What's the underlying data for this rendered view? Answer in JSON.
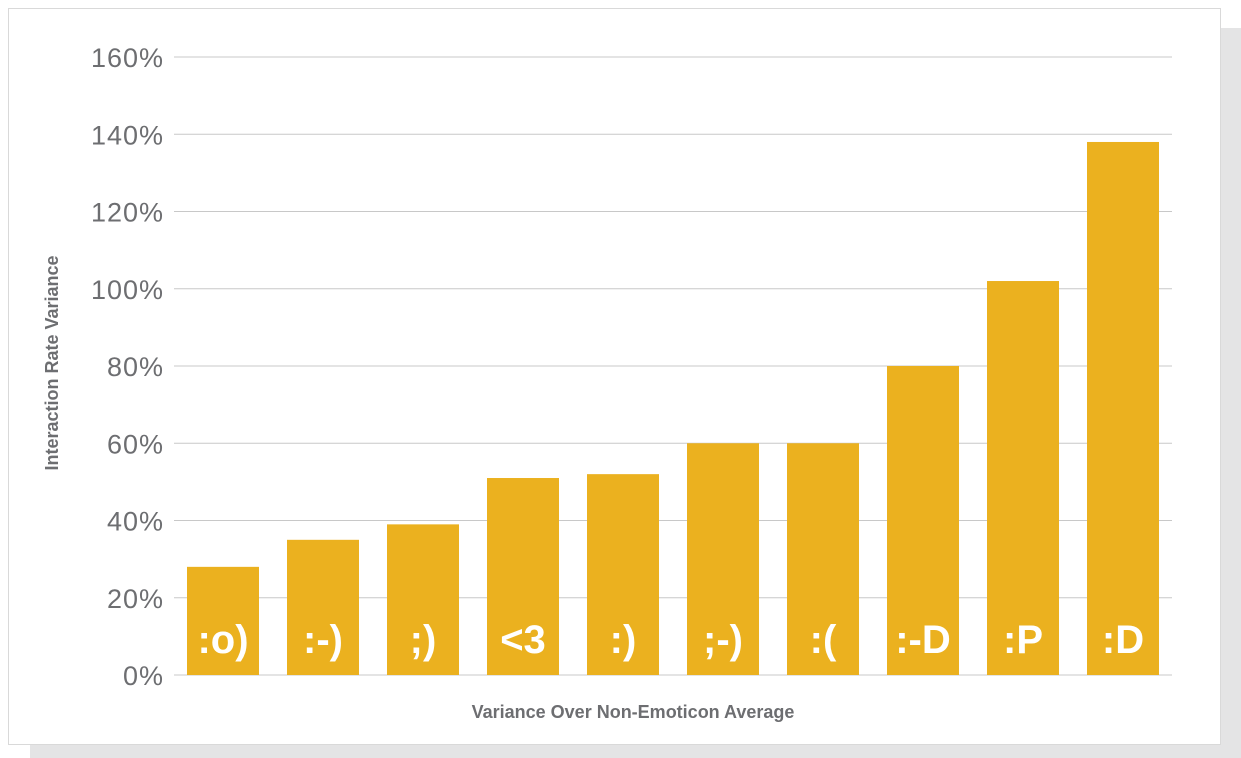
{
  "chart_data": {
    "type": "bar",
    "title": "",
    "xlabel": "Variance Over Non-Emoticon Average",
    "ylabel": "Interaction Rate Variance",
    "categories": [
      ":o)",
      ":-)",
      ";)",
      "<3",
      ":)",
      ";-)",
      ":(",
      ":-D",
      ":P",
      ":D"
    ],
    "values": [
      28,
      35,
      39,
      51,
      52,
      60,
      60,
      80,
      102,
      138
    ],
    "ylim": [
      0,
      160
    ],
    "yticks": [
      0,
      20,
      40,
      60,
      80,
      100,
      120,
      140,
      160
    ],
    "ytick_labels": [
      "0%",
      "20%",
      "40%",
      "60%",
      "80%",
      "100%",
      "120%",
      "140%",
      "160%"
    ],
    "grid": true,
    "legend": "none",
    "bar_color": "#ebb11f",
    "grid_color": "#c8c8c8",
    "text_color": "#6d6e71"
  }
}
